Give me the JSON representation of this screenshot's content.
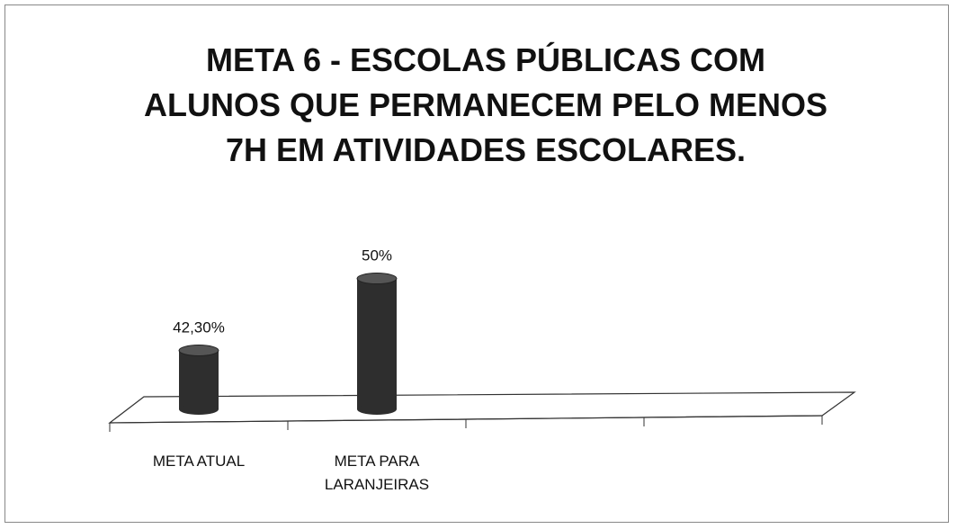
{
  "chart_data": {
    "type": "bar3d",
    "title": "META 6 - ESCOLAS PÚBLICAS COM ALUNOS QUE PERMANECEM PELO MENOS 7H EM ATIVIDADES ESCOLARES.",
    "categories": [
      "META ATUAL",
      "META PARA LARANJEIRAS",
      null,
      null
    ],
    "values": [
      42.3,
      50,
      null,
      null
    ],
    "value_labels": [
      "42,30%",
      "50%",
      null,
      null
    ],
    "color": "#2e2e2e",
    "ylim": [
      36,
      54
    ]
  }
}
